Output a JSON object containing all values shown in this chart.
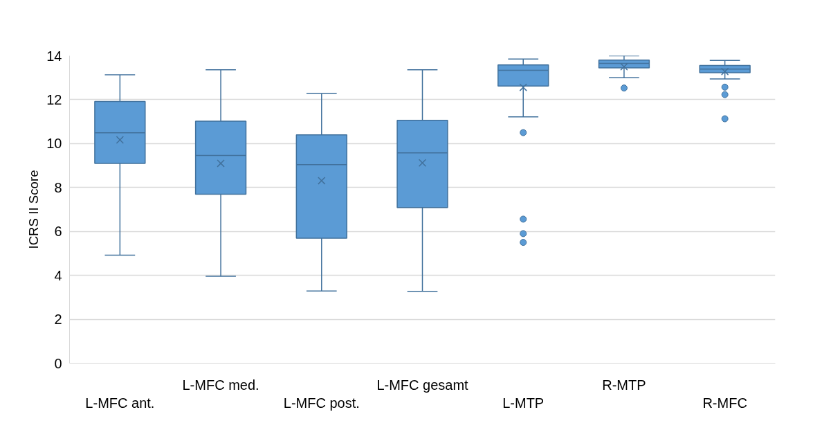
{
  "chart_data": {
    "type": "box",
    "ylabel": "ICRS II Score",
    "categories": [
      "L-MFC ant.",
      "L-MFC med.",
      "L-MFC post.",
      "L-MFC gesamt",
      "L-MTP",
      "R-MTP",
      "R-MFC"
    ],
    "color": "#5b9bd5",
    "boxes": [
      {
        "low": 4.92,
        "q1": 9.1,
        "median": 10.49,
        "q3": 11.92,
        "high": 13.13,
        "mean": 10.17
      },
      {
        "low": 3.96,
        "q1": 7.69,
        "median": 9.46,
        "q3": 11.02,
        "high": 13.36,
        "mean": 9.1
      },
      {
        "low": 3.29,
        "q1": 5.69,
        "median": 9.04,
        "q3": 10.4,
        "high": 12.28,
        "mean": 8.31
      },
      {
        "low": 3.27,
        "q1": 7.09,
        "median": 9.58,
        "q3": 11.06,
        "high": 13.36,
        "mean": 9.12
      },
      {
        "low": 11.22,
        "q1": 12.62,
        "median": 13.34,
        "q3": 13.58,
        "high": 13.85,
        "mean": 12.56,
        "outliers": [
          10.5,
          6.56,
          5.9,
          5.5
        ]
      },
      {
        "low": 13.0,
        "q1": 13.45,
        "median": 13.65,
        "q3": 13.8,
        "high": 14.0,
        "mean": 13.5,
        "outliers": [
          12.53
        ]
      },
      {
        "low": 12.94,
        "q1": 13.23,
        "median": 13.39,
        "q3": 13.56,
        "high": 13.79,
        "mean": 13.28,
        "outliers": [
          12.57,
          12.23,
          11.13
        ]
      }
    ],
    "ylim": [
      0,
      14
    ],
    "yticks": [
      0,
      2,
      4,
      6,
      8,
      10,
      12,
      14
    ],
    "grid": "y"
  }
}
